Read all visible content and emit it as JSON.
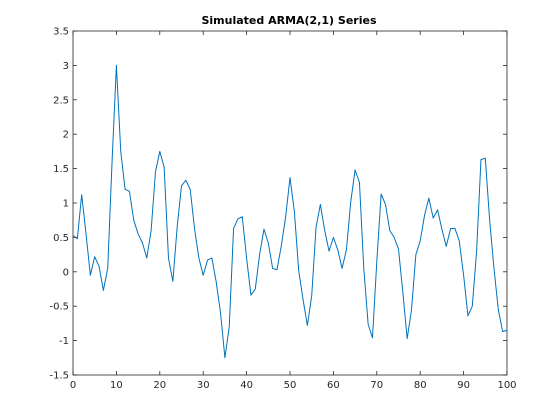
{
  "chart_data": {
    "type": "line",
    "title": "Simulated ARMA(2,1) Series",
    "xlabel": "",
    "ylabel": "",
    "xlim": [
      0,
      100
    ],
    "ylim": [
      -1.5,
      3.5
    ],
    "xticks": [
      0,
      10,
      20,
      30,
      40,
      50,
      60,
      70,
      80,
      90,
      100
    ],
    "yticks": [
      -1.5,
      -1,
      -0.5,
      0,
      0.5,
      1,
      1.5,
      2,
      2.5,
      3,
      3.5
    ],
    "grid": false,
    "box": true,
    "series": [
      {
        "color": "#0072BD",
        "x": [
          0,
          1,
          2,
          3,
          4,
          5,
          6,
          7,
          8,
          9,
          10,
          11,
          12,
          13,
          14,
          15,
          16,
          17,
          18,
          19,
          20,
          21,
          22,
          23,
          24,
          25,
          26,
          27,
          28,
          29,
          30,
          31,
          32,
          33,
          34,
          35,
          36,
          37,
          38,
          39,
          40,
          41,
          42,
          43,
          44,
          45,
          46,
          47,
          48,
          49,
          50,
          51,
          52,
          53,
          54,
          55,
          56,
          57,
          58,
          59,
          60,
          61,
          62,
          63,
          64,
          65,
          66,
          67,
          68,
          69,
          70,
          71,
          72,
          73,
          74,
          75,
          76,
          77,
          78,
          79,
          80,
          81,
          82,
          83,
          84,
          85,
          86,
          87,
          88,
          89,
          90,
          91,
          92,
          93,
          94,
          95,
          96,
          97,
          98,
          99,
          100
        ],
        "y": [
          0.53,
          0.48,
          1.12,
          0.55,
          -0.05,
          0.22,
          0.08,
          -0.27,
          0.05,
          1.6,
          3.0,
          1.75,
          1.2,
          1.17,
          0.75,
          0.55,
          0.42,
          0.2,
          0.6,
          1.45,
          1.75,
          1.52,
          0.2,
          -0.14,
          0.65,
          1.25,
          1.33,
          1.2,
          0.63,
          0.2,
          -0.05,
          0.17,
          0.2,
          -0.15,
          -0.6,
          -1.25,
          -0.8,
          0.63,
          0.77,
          0.8,
          0.2,
          -0.34,
          -0.25,
          0.25,
          0.62,
          0.42,
          0.05,
          0.03,
          0.38,
          0.8,
          1.37,
          0.88,
          0.02,
          -0.4,
          -0.78,
          -0.35,
          0.65,
          0.98,
          0.6,
          0.3,
          0.5,
          0.32,
          0.05,
          0.32,
          1.02,
          1.48,
          1.3,
          0.05,
          -0.76,
          -0.96,
          0.15,
          1.13,
          0.98,
          0.6,
          0.5,
          0.33,
          -0.3,
          -0.97,
          -0.55,
          0.25,
          0.45,
          0.82,
          1.07,
          0.78,
          0.9,
          0.62,
          0.37,
          0.63,
          0.63,
          0.45,
          -0.05,
          -0.64,
          -0.5,
          0.3,
          1.63,
          1.65,
          0.75,
          0.05,
          -0.55,
          -0.87,
          -0.85
        ]
      }
    ]
  }
}
